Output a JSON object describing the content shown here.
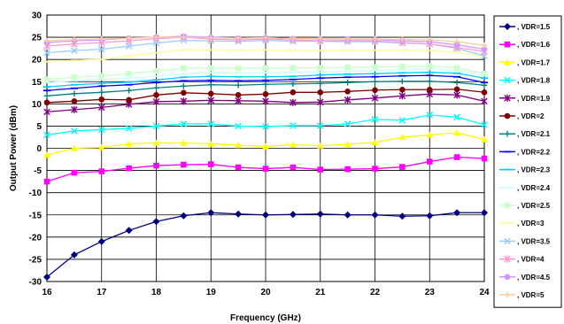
{
  "chart_data": {
    "type": "line",
    "title": "",
    "xlabel": "Frequency (GHz)",
    "ylabel": "Output Power (dBm)",
    "xlim": [
      16,
      24
    ],
    "ylim": [
      -30,
      30
    ],
    "x_ticks": [
      "16",
      "17",
      "18",
      "19",
      "20",
      "21",
      "22",
      "23",
      "24"
    ],
    "y_ticks": [
      "30",
      "25",
      "20",
      "15",
      "10",
      "5",
      "0",
      "-5",
      "-10",
      "-15",
      "-20",
      "-25",
      "-30"
    ],
    "grid": true,
    "legend_position": "right",
    "x": [
      16,
      16.5,
      17,
      17.5,
      18,
      18.5,
      19,
      19.5,
      20,
      20.5,
      21,
      21.5,
      22,
      22.5,
      23,
      23.5,
      24
    ],
    "series": [
      {
        "name": ", VDR=1.5",
        "color": "#000080",
        "marker": "diamond",
        "values": [
          -29,
          -24,
          -21,
          -18.5,
          -16.5,
          -15.2,
          -14.5,
          -14.8,
          -15,
          -14.9,
          -14.8,
          -15,
          -15,
          -15.3,
          -15.2,
          -14.5,
          -14.5
        ]
      },
      {
        "name": ", VDR=1.6",
        "color": "#ff00ff",
        "marker": "square",
        "values": [
          -7.5,
          -5.5,
          -5.2,
          -4.5,
          -3.9,
          -3.7,
          -3.6,
          -4.3,
          -4.6,
          -4.3,
          -4.8,
          -4.7,
          -4.6,
          -4.2,
          -3,
          -2,
          -2.3
        ]
      },
      {
        "name": ", VDR=1.7",
        "color": "#ffff00",
        "marker": "triangle",
        "values": [
          -1.5,
          0,
          0.2,
          1,
          1.2,
          1.2,
          1,
          0.7,
          0.4,
          0.8,
          0.6,
          0.9,
          1.3,
          2.5,
          3,
          3.5,
          2
        ]
      },
      {
        "name": ", VDR=1.8",
        "color": "#00ffff",
        "marker": "x",
        "values": [
          3,
          3.9,
          4.2,
          4.5,
          5,
          5.5,
          5.5,
          5,
          4.9,
          5.1,
          5.1,
          5.5,
          6.5,
          6.3,
          7.5,
          7,
          5.3
        ]
      },
      {
        "name": ", VDR=1.9",
        "color": "#800080",
        "marker": "star",
        "values": [
          8.2,
          8.7,
          9.2,
          9.9,
          10.5,
          10.6,
          10.8,
          10.7,
          10.6,
          10.3,
          10.4,
          10.9,
          11.3,
          11.8,
          12.2,
          12,
          10.6
        ]
      },
      {
        "name": ", VDR=2",
        "color": "#800000",
        "marker": "circle",
        "values": [
          10.3,
          10.6,
          11,
          10.9,
          12,
          12.5,
          12.3,
          12,
          12.2,
          12.6,
          12.6,
          12.8,
          13.1,
          13.2,
          13.2,
          13.3,
          12.6
        ]
      },
      {
        "name": ", VDR=2.1",
        "color": "#008080",
        "marker": "plus",
        "values": [
          11.8,
          12.3,
          12.6,
          13,
          13.6,
          14,
          14.3,
          14.2,
          14.4,
          14.5,
          14.6,
          14.8,
          15,
          15.1,
          15.1,
          14.8,
          14.2
        ]
      },
      {
        "name": ", VDR=2.2",
        "color": "#0000ff",
        "marker": "dash",
        "values": [
          13,
          13.5,
          14,
          14.3,
          14.8,
          15.2,
          15.3,
          15.2,
          15.3,
          15.5,
          15.8,
          16,
          16.1,
          16.3,
          16.4,
          16.1,
          14.8
        ]
      },
      {
        "name": ", VDR=2.3",
        "color": "#00ccff",
        "marker": "dash",
        "values": [
          13.8,
          14.3,
          14.6,
          14.9,
          15.4,
          16,
          16.2,
          16.1,
          16.1,
          16.2,
          16.5,
          16.7,
          16.8,
          17,
          17.1,
          16.9,
          15.8
        ]
      },
      {
        "name": ", VDR=2.4",
        "color": "#ccffff",
        "marker": "dash",
        "values": [
          14.8,
          15.2,
          15.5,
          15.8,
          16.2,
          16.8,
          17,
          16.9,
          17,
          17.1,
          17.2,
          17.3,
          17.5,
          17.7,
          17.8,
          17.5,
          16.5
        ]
      },
      {
        "name": ", VDR=2.5",
        "color": "#ccffcc",
        "marker": "square",
        "values": [
          15.5,
          16,
          16.3,
          16.8,
          17.4,
          18,
          18,
          18,
          18,
          18.1,
          18.1,
          18.2,
          18.3,
          18.4,
          18.5,
          18.1,
          16.8
        ]
      },
      {
        "name": ", VDR=3",
        "color": "#ffff99",
        "marker": "dash",
        "values": [
          19.5,
          19.8,
          20,
          20.8,
          21.5,
          22.2,
          22.2,
          22.1,
          22.2,
          22,
          22,
          22.1,
          22.1,
          22.1,
          22,
          21.6,
          20.6
        ]
      },
      {
        "name": ", VDR=3.5",
        "color": "#99ccff",
        "marker": "x",
        "values": [
          21.5,
          22,
          22.3,
          23,
          23.7,
          24.3,
          24.2,
          24.1,
          24.3,
          24.1,
          24.1,
          24,
          24,
          23.7,
          23.5,
          22.5,
          20.8
        ]
      },
      {
        "name": ", VDR=4",
        "color": "#ff99cc",
        "marker": "star",
        "values": [
          23,
          23.5,
          23.8,
          24.2,
          24.7,
          25,
          24.6,
          24.4,
          24.6,
          24.4,
          24.2,
          24.3,
          24.2,
          23.8,
          23.5,
          22.7,
          21.8
        ]
      },
      {
        "name": ", VDR=4.5",
        "color": "#cc99ff",
        "marker": "circle",
        "values": [
          23.8,
          24.2,
          24.4,
          24.8,
          25,
          25.2,
          25,
          24.8,
          24.9,
          24.7,
          24.6,
          24.6,
          24.5,
          24.2,
          24,
          23.3,
          22.3
        ]
      },
      {
        "name": ", VDR=5",
        "color": "#ffcc99",
        "marker": "plus",
        "values": [
          24.2,
          24.5,
          24.6,
          24.8,
          25,
          25,
          24.9,
          24.8,
          24.9,
          24.7,
          24.7,
          24.6,
          24.6,
          24.5,
          24.4,
          24,
          23.2
        ]
      }
    ]
  }
}
